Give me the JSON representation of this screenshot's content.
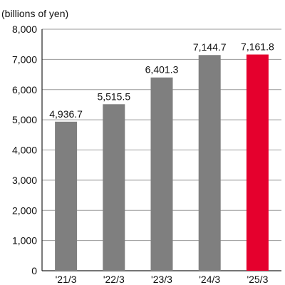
{
  "chart_data": {
    "type": "bar",
    "ylabel": "(billions of yen)",
    "categories": [
      "'21/3",
      "'22/3",
      "'23/3",
      "'24/3",
      "'25/3"
    ],
    "values": [
      4936.7,
      5515.5,
      6401.3,
      7144.7,
      7161.8
    ],
    "data_labels": [
      "4,936.7",
      "5,515.5",
      "6,401.3",
      "7,144.7",
      "7,161.8"
    ],
    "yticks": [
      0,
      1000,
      2000,
      3000,
      4000,
      5000,
      6000,
      7000,
      8000
    ],
    "ytick_labels": [
      "0",
      "1,000",
      "2,000",
      "3,000",
      "4,000",
      "5,000",
      "6,000",
      "7,000",
      "8,000"
    ],
    "ylim": [
      0,
      8000
    ],
    "grid": "horizontal",
    "legend": "none",
    "colors": {
      "bar": "#7f7f7f",
      "highlight_bar": "#e5002d",
      "grid": "#9a9a9a",
      "axis": "#222222",
      "text": "#111111"
    },
    "highlight_index": 4
  }
}
